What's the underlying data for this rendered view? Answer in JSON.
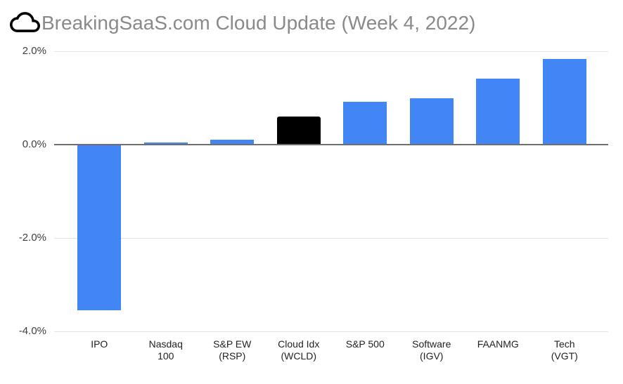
{
  "title": {
    "text": "BreakingSaaS.com Cloud Update (Week 4, 2022)",
    "icon": "cloud-outline-icon"
  },
  "colors": {
    "bar_default": "#4285F4",
    "bar_highlight": "#000000",
    "gridline": "#e3e3e3",
    "baseline": "#6e6e6e",
    "title_text": "#8a8a8a",
    "axis_text": "#404040",
    "category_text": "#222222"
  },
  "chart_data": {
    "type": "bar",
    "title": "BreakingSaaS.com Cloud Update (Week 4, 2022)",
    "categories": [
      "IPO",
      "Nasdaq\n100",
      "S&P EW\n(RSP)",
      "Cloud Idx\n(WCLD)",
      "S&P 500",
      "Software\n(IGV)",
      "FAANMG",
      "Tech\n(VGT)"
    ],
    "values": [
      -3.55,
      0.05,
      0.1,
      0.6,
      0.92,
      0.99,
      1.42,
      1.84
    ],
    "bar_colors": [
      "#4285F4",
      "#4285F4",
      "#4285F4",
      "#000000",
      "#4285F4",
      "#4285F4",
      "#4285F4",
      "#4285F4"
    ],
    "y_ticks": [
      "2.0%",
      "0.0%",
      "-2.0%",
      "-4.0%"
    ],
    "y_tick_values": [
      2.0,
      0.0,
      -2.0,
      -4.0
    ],
    "ylim": [
      -4.0,
      2.0
    ],
    "xlabel": "",
    "ylabel": "",
    "grid": true,
    "legend": "none"
  }
}
